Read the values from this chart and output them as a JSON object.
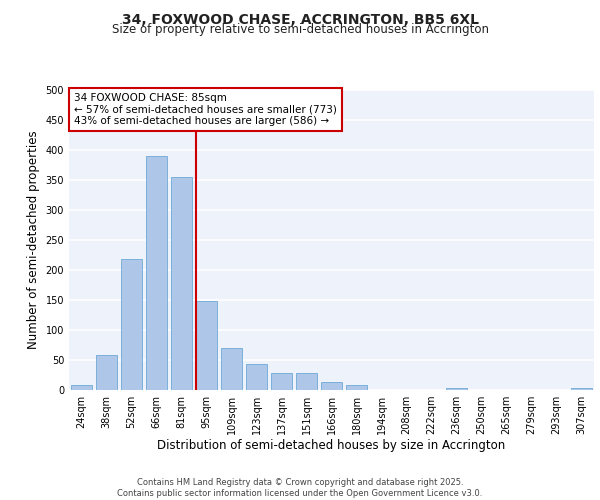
{
  "title": "34, FOXWOOD CHASE, ACCRINGTON, BB5 6XL",
  "subtitle": "Size of property relative to semi-detached houses in Accrington",
  "xlabel": "Distribution of semi-detached houses by size in Accrington",
  "ylabel": "Number of semi-detached properties",
  "categories": [
    "24sqm",
    "38sqm",
    "52sqm",
    "66sqm",
    "81sqm",
    "95sqm",
    "109sqm",
    "123sqm",
    "137sqm",
    "151sqm",
    "166sqm",
    "180sqm",
    "194sqm",
    "208sqm",
    "222sqm",
    "236sqm",
    "250sqm",
    "265sqm",
    "279sqm",
    "293sqm",
    "307sqm"
  ],
  "values": [
    8,
    58,
    218,
    390,
    355,
    148,
    70,
    43,
    29,
    29,
    13,
    9,
    0,
    0,
    0,
    4,
    0,
    0,
    0,
    0,
    3
  ],
  "bar_color": "#aec6e8",
  "bar_edge_color": "#5a9fd4",
  "property_line_x": 4.57,
  "annotation_text": "34 FOXWOOD CHASE: 85sqm\n← 57% of semi-detached houses are smaller (773)\n43% of semi-detached houses are larger (586) →",
  "vline_color": "#cc0000",
  "box_color": "#cc0000",
  "ylim": [
    0,
    500
  ],
  "yticks": [
    0,
    50,
    100,
    150,
    200,
    250,
    300,
    350,
    400,
    450,
    500
  ],
  "footer_text": "Contains HM Land Registry data © Crown copyright and database right 2025.\nContains public sector information licensed under the Open Government Licence v3.0.",
  "background_color": "#eef2fb",
  "grid_color": "#ffffff",
  "title_fontsize": 10,
  "subtitle_fontsize": 8.5,
  "tick_fontsize": 7,
  "label_fontsize": 8.5,
  "footer_fontsize": 6,
  "ann_fontsize": 7.5
}
